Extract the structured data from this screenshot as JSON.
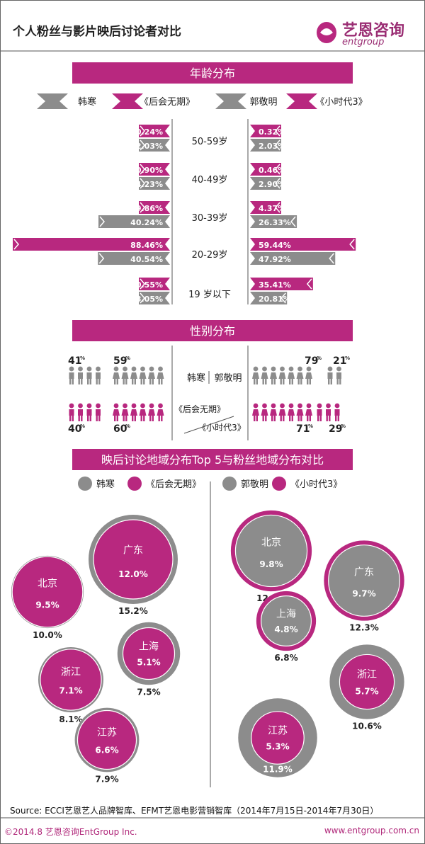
{
  "header": {
    "title": "个人粉丝与影片映后讨论者对比",
    "logo_cn": "艺恩咨询",
    "logo_en": "entgroup"
  },
  "colors": {
    "magenta": "#b8287f",
    "gray": "#8c8c8c",
    "banner": "#b8287f"
  },
  "sections": {
    "age": "年龄分布",
    "gender": "性别分布",
    "region": "映后讨论地域分布Top 5与粉丝地域分布对比"
  },
  "age_legend": [
    "韩寒",
    "《后会无期》",
    "郭敬明",
    "《小时代3》"
  ],
  "chart_data": [
    {
      "type": "bar",
      "title": "年龄分布",
      "categories": [
        "50-59岁",
        "40-49岁",
        "30-39岁",
        "20-29岁",
        "19 岁以下"
      ],
      "left": {
        "series": [
          {
            "name": "《后会无期》",
            "values": [
              0.24,
              0.9,
              9.86,
              88.46,
              0.55
            ],
            "labels": [
              "0.24%",
              "0.90%",
              "9.86%",
              "88.46%",
              "0.55%"
            ]
          },
          {
            "name": "韩寒",
            "values": [
              2.03,
              14.23,
              40.24,
              40.54,
              3.05
            ],
            "labels": [
              "2.03%",
              "14.23%",
              "40.24%",
              "40.54%",
              "3.05%"
            ]
          }
        ]
      },
      "right": {
        "series": [
          {
            "name": "《小时代3》",
            "values": [
              0.32,
              0.46,
              4.37,
              59.44,
              35.41
            ],
            "labels": [
              "0.32%",
              "0.46%",
              "4.37%",
              "59.44%",
              "35.41%"
            ]
          },
          {
            "name": "郭敬明",
            "values": [
              2.03,
              2.9,
              26.33,
              47.92,
              20.81
            ],
            "labels": [
              "2.03%",
              "2.90%",
              "26.33%",
              "47.92%",
              "20.81%"
            ]
          }
        ]
      }
    },
    {
      "type": "bar",
      "title": "性别分布",
      "left": {
        "fan": {
          "male": "41",
          "female": "59"
        },
        "movie": {
          "male": "40",
          "female": "60"
        }
      },
      "right": {
        "fan": {
          "female": "79",
          "male": "21"
        },
        "movie": {
          "female": "71",
          "male": "29"
        }
      },
      "labels": {
        "fan_l": "韩寒",
        "fan_r": "郭敬明",
        "movie_l": "《后会无期》",
        "movie_r": "《小时代3》"
      }
    },
    {
      "type": "scatter",
      "title": "映后讨论地域分布Top 5与粉丝地域分布对比",
      "legend_left": [
        "韩寒",
        "《后会无期》"
      ],
      "legend_right": [
        "郭敬明",
        "《小时代3》"
      ],
      "left": [
        {
          "region": "广东",
          "movie": "12.0%",
          "fan": "15.2%",
          "movie_v": 12.0,
          "fan_v": 15.2
        },
        {
          "region": "北京",
          "movie": "9.5%",
          "fan": "10.0%",
          "movie_v": 9.5,
          "fan_v": 10.0
        },
        {
          "region": "上海",
          "movie": "5.1%",
          "fan": "7.5%",
          "movie_v": 5.1,
          "fan_v": 7.5
        },
        {
          "region": "浙江",
          "movie": "7.1%",
          "fan": "8.1%",
          "movie_v": 7.1,
          "fan_v": 8.1
        },
        {
          "region": "江苏",
          "movie": "6.6%",
          "fan": "7.9%",
          "movie_v": 6.6,
          "fan_v": 7.9
        }
      ],
      "right": [
        {
          "region": "北京",
          "fan": "9.8%",
          "movie": "12.5%",
          "fan_v": 9.8,
          "movie_v": 12.5
        },
        {
          "region": "广东",
          "fan": "9.7%",
          "movie": "12.3%",
          "fan_v": 9.7,
          "movie_v": 12.3
        },
        {
          "region": "上海",
          "fan": "4.8%",
          "movie": "6.8%",
          "fan_v": 4.8,
          "movie_v": 6.8
        },
        {
          "region": "浙江",
          "movie": "5.7%",
          "fan": "10.6%",
          "movie_v": 5.7,
          "fan_v": 10.6
        },
        {
          "region": "江苏",
          "movie": "5.3%",
          "fan": "11.9%",
          "movie_v": 5.3,
          "fan_v": 11.9
        }
      ]
    }
  ],
  "source": "Source:  ECCI艺恩艺人品牌智库、EFMT艺恩电影营销智库（2014年7月15日-2014年7月30日）",
  "footer_left": "©2014.8 艺恩咨询EntGroup Inc.",
  "footer_right": "www.entgroup.com.cn"
}
